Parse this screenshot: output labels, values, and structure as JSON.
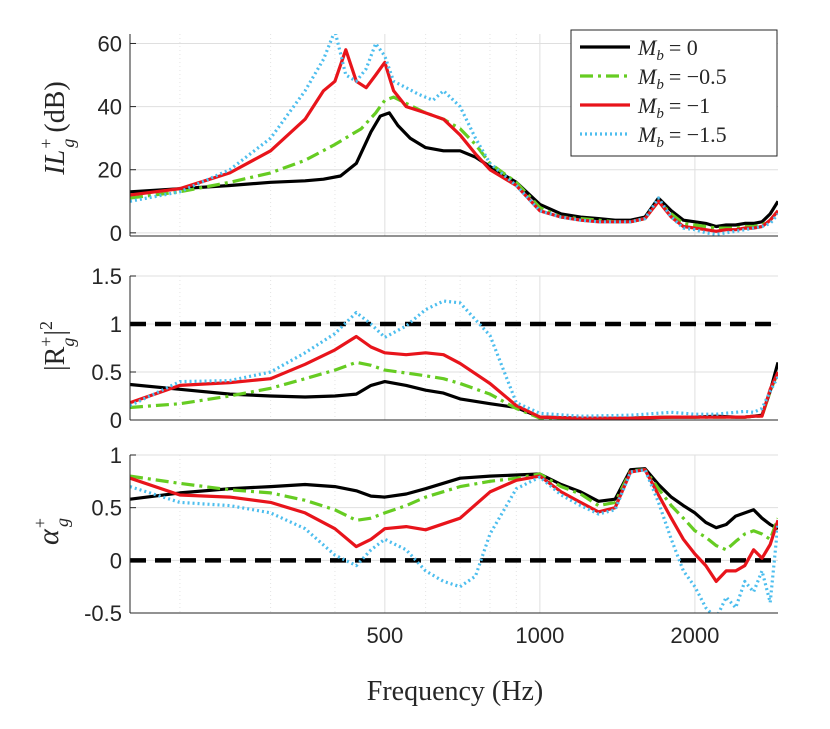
{
  "chart_data": [
    {
      "type": "line",
      "ylabel": "IL",
      "ylabel_sub": "g",
      "ylabel_sup": "+",
      "ylabel_unit": "(dB)",
      "ylim": [
        -1,
        63
      ],
      "yticks": [
        0,
        20,
        40,
        60
      ],
      "ytick_labels": [
        "0",
        "20",
        "40",
        "60"
      ],
      "xscale": "log",
      "xlim": [
        160,
        2900
      ],
      "grid": true,
      "legend_position": "top-right",
      "series": [
        {
          "name": "M_b = 0",
          "color": "#000000",
          "dash": "solid",
          "x": [
            160,
            200,
            250,
            300,
            350,
            380,
            410,
            440,
            470,
            490,
            510,
            530,
            560,
            600,
            650,
            700,
            750,
            800,
            900,
            1000,
            1100,
            1200,
            1300,
            1400,
            1500,
            1600,
            1700,
            1800,
            1900,
            2000,
            2100,
            2200,
            2300,
            2400,
            2500,
            2600,
            2700,
            2800,
            2900
          ],
          "y": [
            13,
            14,
            15,
            16,
            16.5,
            17,
            18,
            22,
            32,
            37,
            38,
            34,
            30,
            27,
            26,
            26,
            24,
            21,
            16,
            9,
            6,
            5,
            4.5,
            4,
            4,
            5,
            11,
            7,
            4,
            3.5,
            3,
            2,
            2.5,
            2.5,
            3,
            3,
            3.5,
            6,
            10
          ]
        },
        {
          "name": "M_b = -0.5",
          "color": "#66cc22",
          "dash": "dashdot",
          "x": [
            160,
            200,
            250,
            300,
            350,
            400,
            450,
            480,
            500,
            520,
            550,
            600,
            650,
            700,
            750,
            800,
            900,
            1000,
            1100,
            1200,
            1300,
            1400,
            1500,
            1600,
            1700,
            1800,
            1900,
            2000,
            2100,
            2200,
            2300,
            2400,
            2500,
            2600,
            2700,
            2800,
            2900
          ],
          "y": [
            11,
            13,
            16,
            19,
            23,
            28,
            33,
            38,
            42,
            43,
            41,
            38,
            36,
            33,
            28,
            22,
            16,
            8,
            5,
            4.5,
            4,
            3.5,
            3.5,
            4.5,
            10,
            6,
            3,
            2.5,
            2,
            1.5,
            1.5,
            1.5,
            2,
            2,
            2.5,
            4,
            7
          ]
        },
        {
          "name": "M_b = -1",
          "color": "#e8141b",
          "dash": "solid",
          "x": [
            160,
            200,
            250,
            300,
            350,
            380,
            400,
            420,
            440,
            460,
            480,
            500,
            520,
            550,
            600,
            650,
            700,
            750,
            800,
            900,
            1000,
            1100,
            1200,
            1300,
            1400,
            1500,
            1600,
            1700,
            1800,
            1900,
            2000,
            2100,
            2200,
            2300,
            2400,
            2500,
            2600,
            2700,
            2800,
            2900
          ],
          "y": [
            12,
            14,
            19,
            26,
            36,
            45,
            48,
            58,
            48,
            46,
            50,
            54,
            45,
            40,
            38,
            36,
            31,
            25,
            20,
            15,
            7,
            5,
            4,
            3.5,
            3.5,
            3.5,
            4.5,
            10,
            5,
            2,
            1.5,
            1,
            0.5,
            1,
            1,
            1.5,
            1.5,
            2,
            4,
            7
          ]
        },
        {
          "name": "M_b = -1.5",
          "color": "#4dbeee",
          "dash": "dotted",
          "x": [
            160,
            200,
            250,
            300,
            350,
            380,
            400,
            420,
            440,
            460,
            480,
            500,
            520,
            550,
            580,
            620,
            650,
            700,
            750,
            800,
            900,
            1000,
            1100,
            1200,
            1300,
            1400,
            1500,
            1600,
            1700,
            1800,
            1900,
            2000,
            2100,
            2200,
            2300,
            2400,
            2500,
            2600,
            2700,
            2800,
            2900
          ],
          "y": [
            10,
            13,
            20,
            30,
            45,
            55,
            64,
            50,
            48,
            52,
            60,
            56,
            48,
            46,
            44,
            42,
            45,
            40,
            30,
            22,
            15,
            7,
            5,
            4,
            3.5,
            3.5,
            3.5,
            4.5,
            11,
            5,
            1.5,
            1,
            0,
            -0.5,
            0,
            0.5,
            1,
            1.5,
            2,
            3,
            6
          ]
        }
      ]
    },
    {
      "type": "line",
      "ylabel": "|R",
      "ylabel_sub": "g",
      "ylabel_sup": "+",
      "ylabel_tail": "|",
      "ylabel_pow": "2",
      "ylim": [
        0,
        1.5
      ],
      "yticks": [
        0,
        0.5,
        1,
        1.5
      ],
      "ytick_labels": [
        "0",
        "0.5",
        "1",
        "1.5"
      ],
      "xscale": "log",
      "xlim": [
        160,
        2900
      ],
      "grid": true,
      "reference_line": 1,
      "series": [
        {
          "name": "M_b = 0",
          "color": "#000000",
          "dash": "solid",
          "x": [
            160,
            200,
            250,
            300,
            350,
            400,
            440,
            470,
            500,
            550,
            600,
            650,
            700,
            800,
            900,
            1000,
            1200,
            1500,
            1800,
            2000,
            2200,
            2400,
            2500,
            2600,
            2700,
            2800,
            2900
          ],
          "y": [
            0.37,
            0.32,
            0.27,
            0.25,
            0.24,
            0.25,
            0.27,
            0.36,
            0.4,
            0.36,
            0.31,
            0.28,
            0.22,
            0.17,
            0.13,
            0.03,
            0.02,
            0.02,
            0.03,
            0.03,
            0.04,
            0.03,
            0.03,
            0.04,
            0.05,
            0.3,
            0.6
          ]
        },
        {
          "name": "M_b = -0.5",
          "color": "#66cc22",
          "dash": "dashdot",
          "x": [
            160,
            200,
            250,
            300,
            350,
            400,
            440,
            470,
            500,
            550,
            600,
            650,
            700,
            800,
            900,
            1000,
            1200,
            1500,
            1800,
            2000,
            2200,
            2400,
            2500,
            2600,
            2700,
            2800,
            2900
          ],
          "y": [
            0.13,
            0.17,
            0.25,
            0.33,
            0.43,
            0.52,
            0.6,
            0.57,
            0.52,
            0.49,
            0.46,
            0.43,
            0.38,
            0.27,
            0.12,
            0.02,
            0.02,
            0.02,
            0.03,
            0.03,
            0.03,
            0.03,
            0.03,
            0.04,
            0.04,
            0.3,
            0.5
          ]
        },
        {
          "name": "M_b = -1",
          "color": "#e8141b",
          "dash": "solid",
          "x": [
            160,
            200,
            250,
            300,
            350,
            400,
            440,
            470,
            500,
            550,
            600,
            650,
            700,
            800,
            900,
            1000,
            1200,
            1500,
            1800,
            2000,
            2200,
            2400,
            2500,
            2600,
            2700,
            2800,
            2900
          ],
          "y": [
            0.18,
            0.36,
            0.39,
            0.43,
            0.58,
            0.73,
            0.87,
            0.76,
            0.7,
            0.68,
            0.7,
            0.68,
            0.59,
            0.38,
            0.15,
            0.03,
            0.02,
            0.02,
            0.03,
            0.03,
            0.03,
            0.03,
            0.03,
            0.04,
            0.04,
            0.32,
            0.5
          ]
        },
        {
          "name": "M_b = -1.5",
          "color": "#4dbeee",
          "dash": "dotted",
          "x": [
            160,
            200,
            250,
            300,
            350,
            400,
            440,
            470,
            500,
            550,
            600,
            650,
            700,
            800,
            900,
            1000,
            1200,
            1500,
            1800,
            2000,
            2200,
            2400,
            2500,
            2600,
            2700,
            2800,
            2900
          ],
          "y": [
            0.15,
            0.4,
            0.41,
            0.5,
            0.7,
            0.9,
            1.12,
            1.0,
            0.86,
            0.98,
            1.15,
            1.24,
            1.22,
            0.88,
            0.18,
            0.07,
            0.04,
            0.05,
            0.08,
            0.06,
            0.06,
            0.08,
            0.09,
            0.08,
            0.12,
            0.3,
            0.45
          ]
        }
      ]
    },
    {
      "type": "line",
      "ylabel": "α",
      "ylabel_sub": "g",
      "ylabel_sup": "+",
      "ylim": [
        -0.5,
        1
      ],
      "yticks": [
        -0.5,
        0,
        0.5,
        1
      ],
      "ytick_labels": [
        "-0.5",
        "0",
        "0.5",
        "1"
      ],
      "xscale": "log",
      "xlim": [
        160,
        2900
      ],
      "xticks": [
        500,
        1000,
        2000
      ],
      "xtick_labels": [
        "500",
        "1000",
        "2000"
      ],
      "xlabel": "Frequency (Hz)",
      "grid": true,
      "reference_line": 0,
      "series": [
        {
          "name": "M_b = 0",
          "color": "#000000",
          "dash": "solid",
          "x": [
            160,
            200,
            250,
            300,
            350,
            400,
            440,
            470,
            500,
            550,
            600,
            700,
            800,
            900,
            1000,
            1100,
            1200,
            1300,
            1400,
            1500,
            1600,
            1700,
            1800,
            1900,
            2000,
            2100,
            2200,
            2300,
            2400,
            2500,
            2600,
            2700,
            2800,
            2900
          ],
          "y": [
            0.58,
            0.64,
            0.68,
            0.7,
            0.72,
            0.7,
            0.66,
            0.61,
            0.6,
            0.63,
            0.68,
            0.78,
            0.8,
            0.81,
            0.82,
            0.72,
            0.65,
            0.56,
            0.58,
            0.86,
            0.87,
            0.72,
            0.6,
            0.52,
            0.45,
            0.36,
            0.31,
            0.34,
            0.42,
            0.45,
            0.48,
            0.4,
            0.34,
            0.3
          ]
        },
        {
          "name": "M_b = -0.5",
          "color": "#66cc22",
          "dash": "dashdot",
          "x": [
            160,
            200,
            250,
            300,
            350,
            400,
            440,
            470,
            500,
            550,
            600,
            700,
            800,
            900,
            1000,
            1100,
            1200,
            1300,
            1400,
            1500,
            1600,
            1700,
            1800,
            1900,
            2000,
            2100,
            2200,
            2300,
            2400,
            2500,
            2600,
            2700,
            2800,
            2900
          ],
          "y": [
            0.8,
            0.73,
            0.67,
            0.64,
            0.57,
            0.48,
            0.38,
            0.4,
            0.45,
            0.52,
            0.6,
            0.7,
            0.75,
            0.78,
            0.82,
            0.7,
            0.63,
            0.52,
            0.55,
            0.85,
            0.86,
            0.68,
            0.52,
            0.4,
            0.28,
            0.22,
            0.14,
            0.1,
            0.18,
            0.25,
            0.28,
            0.25,
            0.2,
            0.4
          ]
        },
        {
          "name": "M_b = -1",
          "color": "#e8141b",
          "dash": "solid",
          "x": [
            160,
            200,
            250,
            300,
            350,
            400,
            440,
            470,
            500,
            550,
            600,
            700,
            800,
            900,
            1000,
            1100,
            1200,
            1300,
            1400,
            1500,
            1600,
            1700,
            1800,
            1900,
            2000,
            2100,
            2200,
            2300,
            2400,
            2500,
            2600,
            2700,
            2800,
            2900
          ],
          "y": [
            0.78,
            0.62,
            0.6,
            0.55,
            0.45,
            0.3,
            0.13,
            0.2,
            0.3,
            0.32,
            0.29,
            0.4,
            0.65,
            0.76,
            0.8,
            0.65,
            0.55,
            0.46,
            0.5,
            0.84,
            0.86,
            0.62,
            0.4,
            0.2,
            0.06,
            -0.05,
            -0.2,
            -0.1,
            -0.1,
            -0.05,
            0.1,
            0.02,
            0.15,
            0.38
          ]
        },
        {
          "name": "M_b = -1.5",
          "color": "#4dbeee",
          "dash": "dotted",
          "x": [
            160,
            200,
            250,
            300,
            350,
            400,
            440,
            470,
            500,
            550,
            600,
            650,
            700,
            750,
            800,
            900,
            1000,
            1100,
            1200,
            1300,
            1400,
            1500,
            1600,
            1700,
            1800,
            1900,
            2000,
            2100,
            2200,
            2300,
            2400,
            2500,
            2600,
            2700,
            2800,
            2900
          ],
          "y": [
            0.7,
            0.55,
            0.52,
            0.45,
            0.3,
            0.05,
            -0.05,
            0.1,
            0.2,
            0.1,
            -0.1,
            -0.2,
            -0.25,
            -0.15,
            0.25,
            0.68,
            0.79,
            0.62,
            0.52,
            0.44,
            0.48,
            0.84,
            0.86,
            0.55,
            0.2,
            -0.1,
            -0.25,
            -0.45,
            -0.55,
            -0.35,
            -0.45,
            -0.2,
            -0.3,
            -0.1,
            -0.4,
            0.35
          ]
        }
      ]
    }
  ],
  "legend": {
    "entries": [
      {
        "label": "M",
        "sub": "b",
        "rhs": "= 0",
        "color": "#000000",
        "dash": "solid"
      },
      {
        "label": "M",
        "sub": "b",
        "rhs": "= −0.5",
        "color": "#66cc22",
        "dash": "dashdot"
      },
      {
        "label": "M",
        "sub": "b",
        "rhs": "= −1",
        "color": "#e8141b",
        "dash": "solid"
      },
      {
        "label": "M",
        "sub": "b",
        "rhs": "= −1.5",
        "color": "#4dbeee",
        "dash": "dotted"
      }
    ]
  }
}
